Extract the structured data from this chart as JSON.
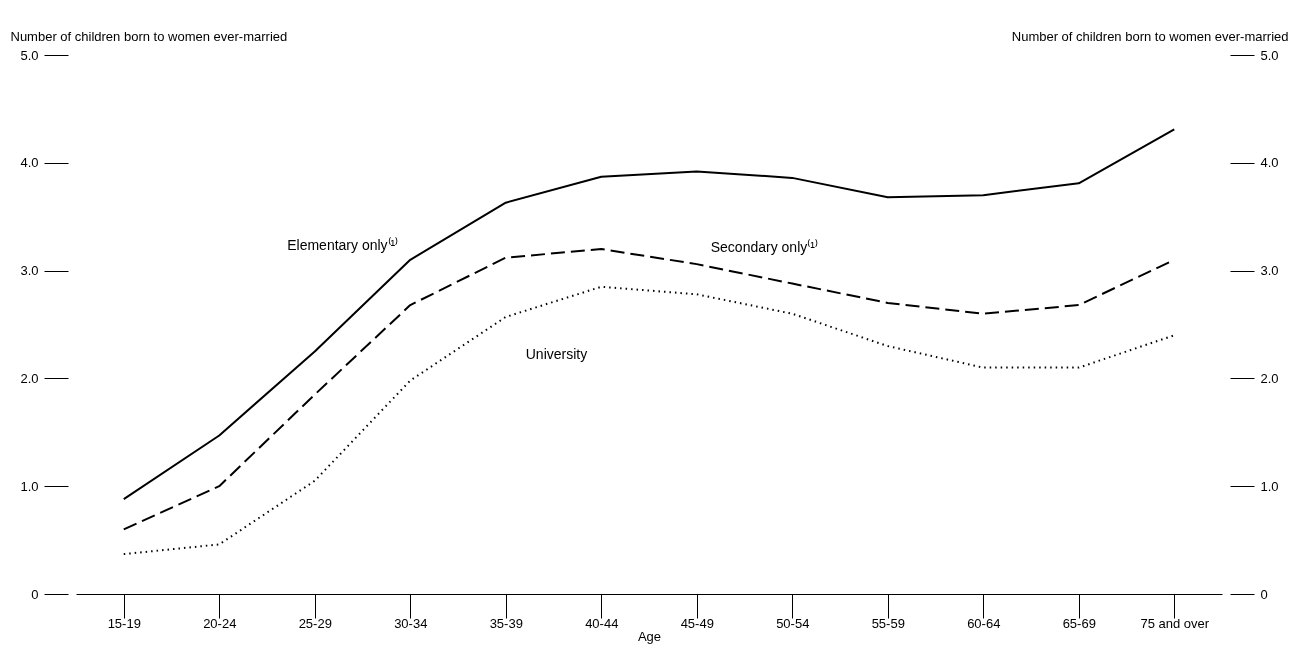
{
  "chart_data": {
    "type": "line",
    "xlabel": "Age",
    "ylabel": "Number of children born to women ever-married",
    "y2label": "Number of children born to women ever-married",
    "categories": [
      "15-19",
      "20-24",
      "25-29",
      "30-34",
      "35-39",
      "40-44",
      "45-49",
      "50-54",
      "55-59",
      "60-64",
      "65-69",
      "75 and over"
    ],
    "series": [
      {
        "name": "Elementary only⁽¹⁾",
        "color": "#000000",
        "line_style": "solid",
        "values": [
          0.88,
          1.47,
          2.25,
          3.1,
          3.63,
          3.87,
          3.92,
          3.86,
          3.68,
          3.7,
          3.81,
          4.31
        ]
      },
      {
        "name": "Secondary only⁽¹⁾",
        "color": "#000000",
        "line_style": "dashed",
        "values": [
          0.6,
          1.0,
          1.85,
          2.68,
          3.12,
          3.2,
          3.06,
          2.88,
          2.7,
          2.6,
          2.68,
          3.1
        ]
      },
      {
        "name": "University",
        "color": "#000000",
        "line_style": "dotted",
        "values": [
          0.37,
          0.46,
          1.05,
          1.98,
          2.57,
          2.85,
          2.78,
          2.6,
          2.3,
          2.1,
          2.1,
          2.4
        ]
      }
    ],
    "ylim": [
      0,
      5
    ],
    "yticks": [
      0,
      {
        "value": 1,
        "label": "1.0"
      },
      {
        "value": 2,
        "label": "2.0"
      },
      {
        "value": 3,
        "label": "3.0"
      },
      {
        "value": 4,
        "label": "4.0"
      },
      {
        "value": 5,
        "label": "5.0"
      }
    ],
    "y2lim": [
      0,
      5
    ],
    "y2ticks": [
      0,
      {
        "value": 1,
        "label": "1.0"
      },
      {
        "value": 2,
        "label": "2.0"
      },
      {
        "value": 3,
        "label": "3.0"
      },
      {
        "value": 4,
        "label": "4.0"
      },
      {
        "value": 5,
        "label": "5.0"
      }
    ],
    "grid": false,
    "marker": "none"
  }
}
